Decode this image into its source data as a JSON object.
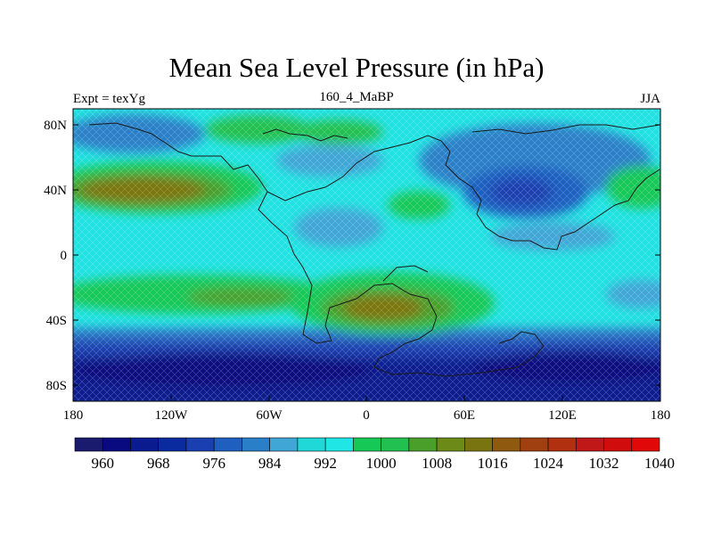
{
  "title": "Mean Sea Level Pressure (in hPa)",
  "left_string": "Expt = texYg",
  "center_string": "160_4_MaBP",
  "right_string": "JJA",
  "lat_ticks": [
    "80N",
    "40N",
    "0",
    "40S",
    "80S"
  ],
  "lon_ticks": [
    "180",
    "120W",
    "60W",
    "0",
    "60E",
    "120E",
    "180"
  ],
  "colorbar": {
    "labels": [
      "960",
      "968",
      "976",
      "984",
      "992",
      "1000",
      "1008",
      "1016",
      "1024",
      "1032",
      "1040"
    ],
    "colors": [
      "#1a1a6e",
      "#0a0a80",
      "#0a1a8f",
      "#0a2aa0",
      "#1a3fb0",
      "#1f5fc0",
      "#2a80c8",
      "#3fa6d6",
      "#20d8d8",
      "#20e6e6",
      "#16c856",
      "#22c050",
      "#4a9f2a",
      "#6b8a18",
      "#7a7410",
      "#8f5a10",
      "#a04010",
      "#b03010",
      "#c01818",
      "#d00c0c",
      "#e00808"
    ]
  }
}
